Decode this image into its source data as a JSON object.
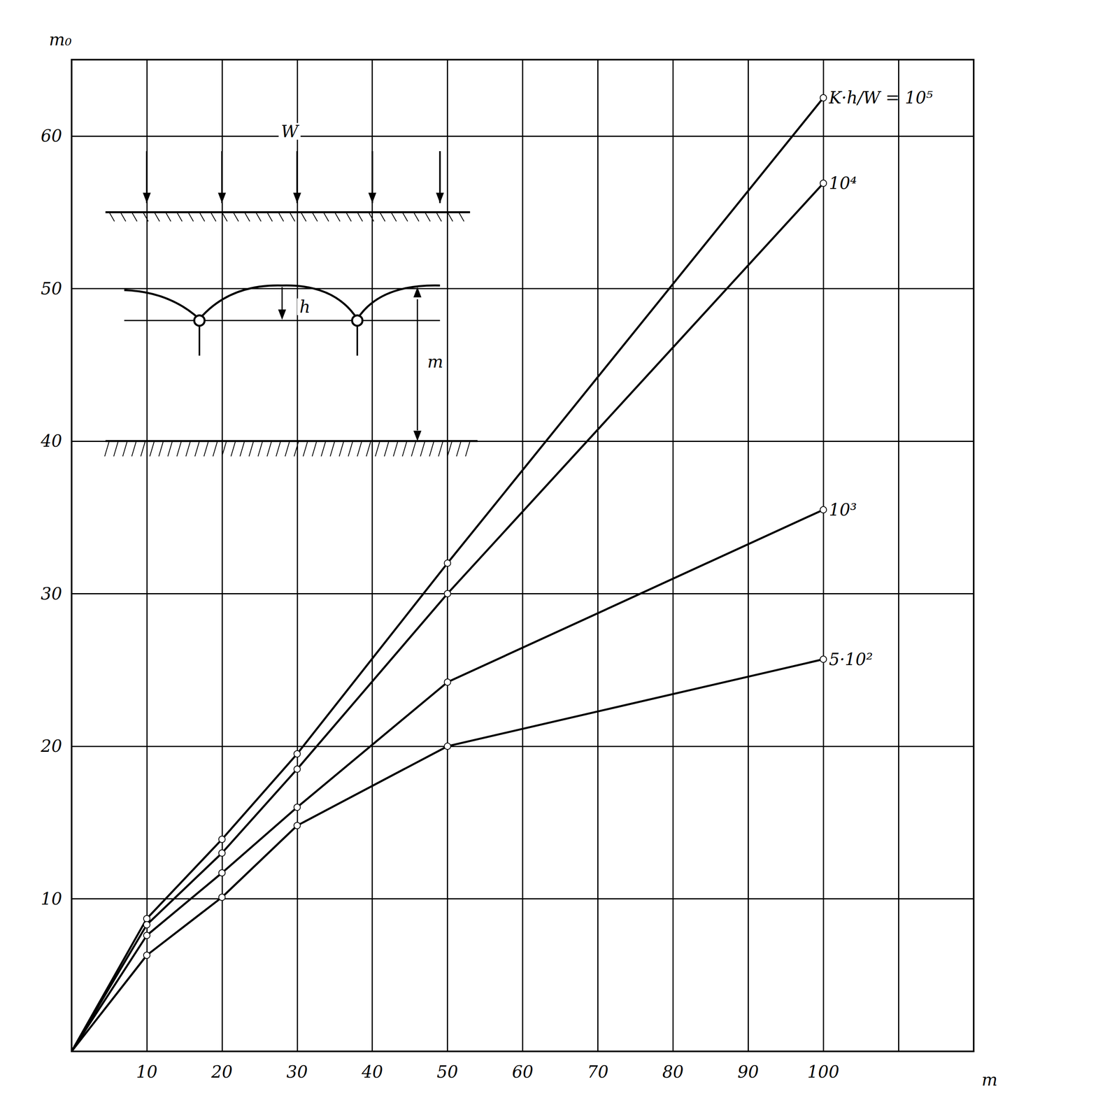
{
  "chart_data": {
    "type": "line",
    "x_label": "m",
    "y_label": "m₀",
    "xlim": [
      0,
      120
    ],
    "xticks": [
      10,
      20,
      30,
      40,
      50,
      60,
      70,
      80,
      90,
      100
    ],
    "ylim": [
      0,
      65
    ],
    "yticks": [
      10,
      20,
      30,
      40,
      50,
      60
    ],
    "grid": true,
    "marker": "circle",
    "annotations": [
      "W",
      "h",
      "m"
    ],
    "series": [
      {
        "name": "K·h/W = 10⁵",
        "color": "#000000",
        "x": [
          0,
          10,
          20,
          30,
          50,
          100
        ],
        "values": [
          0,
          8.7,
          13.9,
          19.5,
          32.0,
          62.5
        ]
      },
      {
        "name": "10⁴",
        "color": "#000000",
        "x": [
          0,
          10,
          20,
          30,
          50,
          100
        ],
        "values": [
          0,
          8.3,
          13.0,
          18.5,
          30.0,
          56.9
        ]
      },
      {
        "name": "10³",
        "color": "#000000",
        "x": [
          0,
          10,
          20,
          30,
          50,
          100
        ],
        "values": [
          0,
          7.6,
          11.7,
          16.0,
          24.2,
          35.5
        ]
      },
      {
        "name": "5·10²",
        "color": "#000000",
        "x": [
          0,
          10,
          20,
          30,
          50,
          100
        ],
        "values": [
          0,
          6.3,
          10.1,
          14.8,
          20.0,
          25.7
        ]
      }
    ]
  }
}
